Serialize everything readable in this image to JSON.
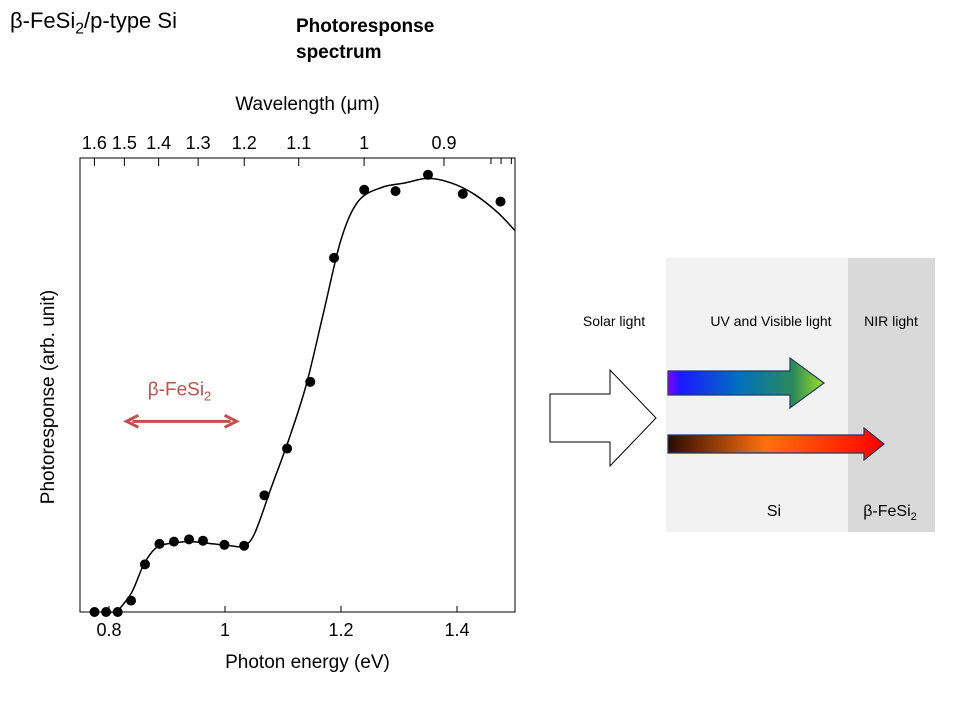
{
  "slide_title": {
    "pre": "β-FeSi",
    "sub": "2",
    "post": "/p-type Si"
  },
  "chart_title": {
    "line1": "Photoresponse",
    "line2": "spectrum"
  },
  "chart_data": {
    "type": "scatter",
    "title": "Photoresponse spectrum",
    "xlabel": "Photon energy (eV)",
    "ylabel": "Photoresponse (arb. unit)",
    "top_xlabel": "Wavelength (μm)",
    "xlim": [
      0.75,
      1.5
    ],
    "ylim": [
      0,
      1.0
    ],
    "x_ticks": [
      "0.8",
      "1",
      "1.2",
      "1.4"
    ],
    "x_tick_values": [
      0.8,
      1.0,
      1.2,
      1.4
    ],
    "top_ticks": [
      "1.6",
      "1.5",
      "1.4",
      "1.3",
      "1.2",
      "1.1",
      "1",
      "0.9"
    ],
    "top_tick_values": [
      1.6,
      1.5,
      1.4,
      1.3,
      1.2,
      1.1,
      1.0,
      0.9
    ],
    "top_minor_tick_values": [
      0.85,
      0.84,
      0.83,
      0.82,
      0.81,
      0.8,
      0.79,
      0.78,
      0.77
    ],
    "grid": false,
    "series": [
      {
        "marker": "circle",
        "x": [
          0.775,
          0.795,
          0.815,
          0.838,
          0.862,
          0.887,
          0.912,
          0.938,
          0.962,
          0.999,
          1.033,
          1.068,
          1.107,
          1.147,
          1.188,
          1.24,
          1.294,
          1.35,
          1.41,
          1.475
        ],
        "y": [
          0.0,
          0.0,
          0.0,
          0.025,
          0.105,
          0.15,
          0.155,
          0.16,
          0.157,
          0.148,
          0.146,
          0.257,
          0.36,
          0.507,
          0.78,
          0.93,
          0.927,
          0.963,
          0.921,
          0.904
        ]
      }
    ],
    "fit_curve": {
      "x": [
        0.79,
        0.81,
        0.82,
        0.84,
        0.86,
        0.88,
        0.9,
        0.94,
        0.98,
        1.01,
        1.03,
        1.05,
        1.08,
        1.11,
        1.14,
        1.17,
        1.2,
        1.23,
        1.27,
        1.31,
        1.35,
        1.39,
        1.43,
        1.47,
        1.5
      ],
      "y": [
        0.0,
        0.0,
        0.01,
        0.045,
        0.105,
        0.14,
        0.15,
        0.155,
        0.15,
        0.146,
        0.145,
        0.17,
        0.275,
        0.38,
        0.5,
        0.66,
        0.82,
        0.905,
        0.935,
        0.945,
        0.955,
        0.945,
        0.92,
        0.88,
        0.84
      ]
    },
    "annotation": {
      "pre": "β-FeSi",
      "sub": "2",
      "x_start": 0.83,
      "x_end": 1.02,
      "y": 0.42,
      "color": "#c0504d"
    }
  },
  "diagram": {
    "solar_label": "Solar light",
    "uv_label": "UV and Visible light",
    "nir_label": "NIR light",
    "si_label": "Si",
    "fesi_label": {
      "pre": "β-FeSi",
      "sub": "2"
    },
    "colors": {
      "si_region": "#f2f2f2",
      "fesi_region": "#d9d9d9",
      "arrow_outline": "#1f3864"
    }
  }
}
